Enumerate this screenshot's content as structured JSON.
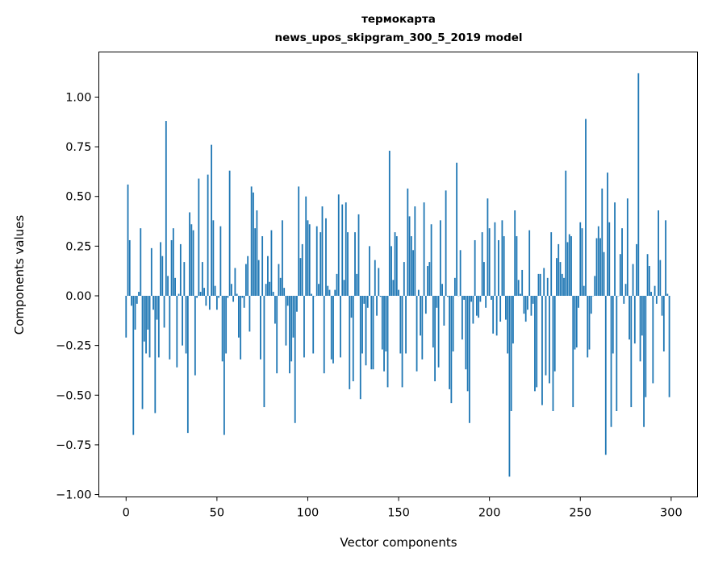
{
  "chart_data": {
    "type": "bar",
    "title": "термокарта",
    "subtitle": "news_upos_skipgram_300_5_2019 model",
    "xlabel": "Vector components",
    "ylabel": "Components values",
    "xlim": [
      -15,
      314.5
    ],
    "ylim": [
      -1.012,
      1.227
    ],
    "xticks": [
      0,
      50,
      100,
      150,
      200,
      250,
      300
    ],
    "xtick_labels": [
      "0",
      "50",
      "100",
      "150",
      "200",
      "250",
      "300"
    ],
    "yticks": [
      -1.0,
      -0.75,
      -0.5,
      -0.25,
      0.0,
      0.25,
      0.5,
      0.75,
      1.0
    ],
    "ytick_labels": [
      "−1.00",
      "−0.75",
      "−0.50",
      "−0.25",
      "0.00",
      "0.25",
      "0.50",
      "0.75",
      "1.00"
    ],
    "grid": false,
    "bar_color": "#1f77b4",
    "values": [
      -0.21,
      0.56,
      0.28,
      -0.05,
      -0.7,
      -0.17,
      -0.04,
      0.02,
      0.34,
      -0.57,
      -0.23,
      -0.29,
      -0.17,
      -0.31,
      0.24,
      -0.07,
      -0.59,
      -0.12,
      -0.31,
      0.27,
      0.2,
      -0.16,
      0.88,
      0.1,
      -0.32,
      0.28,
      0.34,
      0.09,
      -0.36,
      0.01,
      0.26,
      -0.25,
      0.17,
      -0.29,
      -0.69,
      0.42,
      0.36,
      0.33,
      -0.4,
      -0.01,
      0.59,
      0.02,
      0.17,
      0.04,
      -0.05,
      0.61,
      -0.07,
      0.76,
      0.38,
      0.05,
      -0.07,
      -0.01,
      0.35,
      -0.33,
      -0.7,
      -0.29,
      -0.01,
      0.63,
      0.06,
      -0.03,
      0.14,
      0.01,
      -0.21,
      -0.32,
      -0.01,
      -0.06,
      0.16,
      0.2,
      -0.18,
      0.55,
      0.52,
      0.34,
      0.43,
      0.18,
      -0.32,
      0.3,
      -0.56,
      0.06,
      0.2,
      0.07,
      0.33,
      0.02,
      -0.14,
      -0.39,
      0.16,
      0.09,
      0.38,
      0.04,
      -0.25,
      -0.05,
      -0.39,
      -0.33,
      -0.21,
      -0.64,
      -0.08,
      0.55,
      0.19,
      0.26,
      -0.31,
      0.5,
      0.38,
      0.36,
      0.01,
      -0.29,
      0.0,
      0.35,
      0.06,
      0.32,
      0.45,
      -0.39,
      0.39,
      0.05,
      0.03,
      -0.32,
      -0.34,
      0.03,
      0.11,
      0.51,
      -0.31,
      0.46,
      0.08,
      0.47,
      0.32,
      -0.47,
      -0.11,
      -0.43,
      0.32,
      0.11,
      0.41,
      -0.52,
      -0.29,
      -0.04,
      -0.35,
      -0.06,
      0.25,
      -0.37,
      -0.37,
      0.18,
      -0.1,
      0.14,
      -0.005,
      -0.27,
      -0.38,
      -0.28,
      -0.46,
      0.73,
      0.25,
      0.08,
      0.32,
      0.3,
      0.03,
      -0.29,
      -0.46,
      0.17,
      -0.29,
      0.54,
      0.4,
      0.3,
      0.23,
      0.45,
      -0.38,
      0.03,
      -0.2,
      -0.32,
      0.47,
      -0.09,
      0.15,
      0.17,
      0.36,
      -0.26,
      -0.43,
      -0.06,
      -0.36,
      0.38,
      0.06,
      -0.15,
      0.53,
      -0.005,
      -0.47,
      -0.54,
      -0.28,
      0.09,
      0.67,
      0.0,
      0.23,
      -0.22,
      -0.02,
      -0.37,
      -0.48,
      -0.64,
      -0.03,
      -0.14,
      0.28,
      -0.1,
      -0.11,
      -0.03,
      0.32,
      0.17,
      -0.06,
      0.49,
      0.34,
      -0.02,
      -0.19,
      0.37,
      -0.2,
      0.28,
      -0.13,
      0.38,
      0.3,
      -0.12,
      -0.29,
      -0.91,
      -0.58,
      -0.24,
      0.43,
      0.3,
      0.08,
      0.01,
      0.13,
      -0.09,
      -0.13,
      -0.07,
      0.33,
      -0.1,
      -0.04,
      -0.48,
      -0.46,
      0.11,
      0.11,
      -0.55,
      0.14,
      -0.4,
      0.09,
      -0.44,
      0.32,
      -0.58,
      -0.38,
      0.19,
      0.26,
      0.17,
      0.11,
      0.09,
      0.63,
      0.27,
      0.31,
      0.3,
      -0.56,
      -0.27,
      -0.26,
      -0.06,
      0.37,
      0.34,
      0.05,
      0.89,
      -0.31,
      -0.27,
      -0.09,
      0.0,
      0.1,
      0.29,
      0.35,
      0.29,
      0.54,
      0.22,
      -0.8,
      0.62,
      0.37,
      -0.66,
      -0.29,
      0.47,
      -0.58,
      0.0,
      0.21,
      0.34,
      -0.04,
      0.06,
      0.49,
      -0.22,
      -0.56,
      0.16,
      -0.24,
      0.26,
      1.12,
      -0.33,
      -0.2,
      -0.66,
      -0.51,
      0.21,
      0.15,
      0.02,
      -0.44,
      0.05,
      -0.04,
      0.43,
      0.18,
      -0.1,
      -0.28,
      0.38,
      0.01,
      -0.51
    ]
  }
}
